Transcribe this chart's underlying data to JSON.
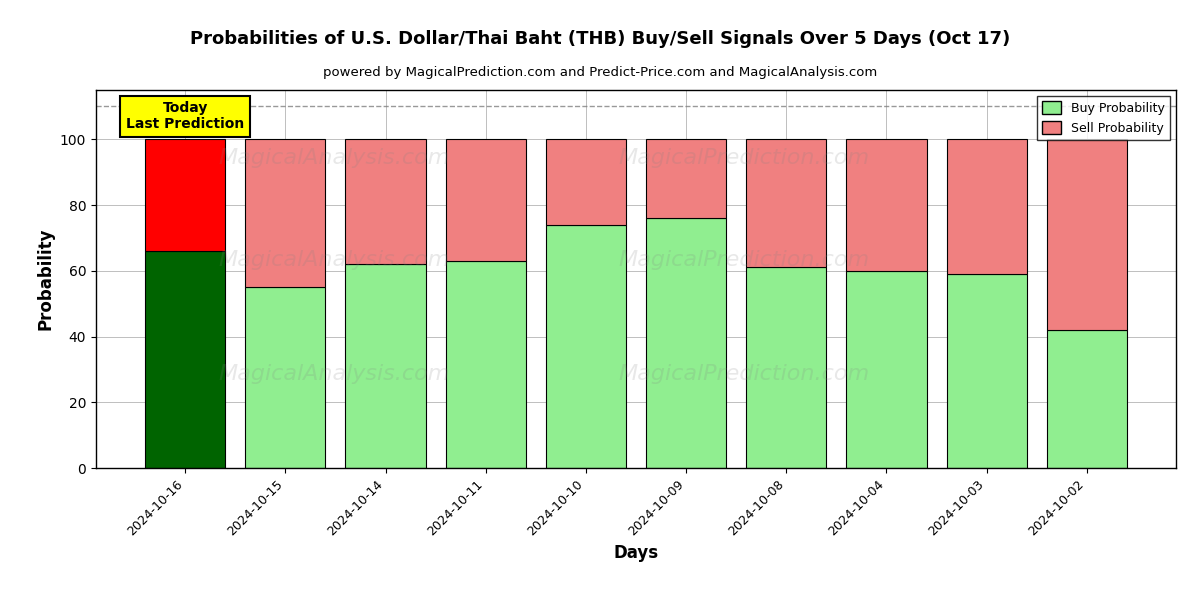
{
  "title": "Probabilities of U.S. Dollar/Thai Baht (THB) Buy/Sell Signals Over 5 Days (Oct 17)",
  "subtitle": "powered by MagicalPrediction.com and Predict-Price.com and MagicalAnalysis.com",
  "xlabel": "Days",
  "ylabel": "Probability",
  "dates": [
    "2024-10-16",
    "2024-10-15",
    "2024-10-14",
    "2024-10-11",
    "2024-10-10",
    "2024-10-09",
    "2024-10-08",
    "2024-10-04",
    "2024-10-03",
    "2024-10-02"
  ],
  "buy_values": [
    66,
    55,
    62,
    63,
    74,
    76,
    61,
    60,
    59,
    42
  ],
  "sell_values": [
    34,
    45,
    38,
    37,
    26,
    24,
    39,
    40,
    41,
    58
  ],
  "today_buy_color": "#006400",
  "today_sell_color": "#FF0000",
  "buy_color": "#90EE90",
  "sell_color": "#F08080",
  "today_annotation": "Today\nLast Prediction",
  "dashed_line_y": 110,
  "ylim": [
    0,
    115
  ],
  "legend_buy": "Buy Probability",
  "legend_sell": "Sell Probability",
  "fig_width": 12.0,
  "fig_height": 6.0
}
